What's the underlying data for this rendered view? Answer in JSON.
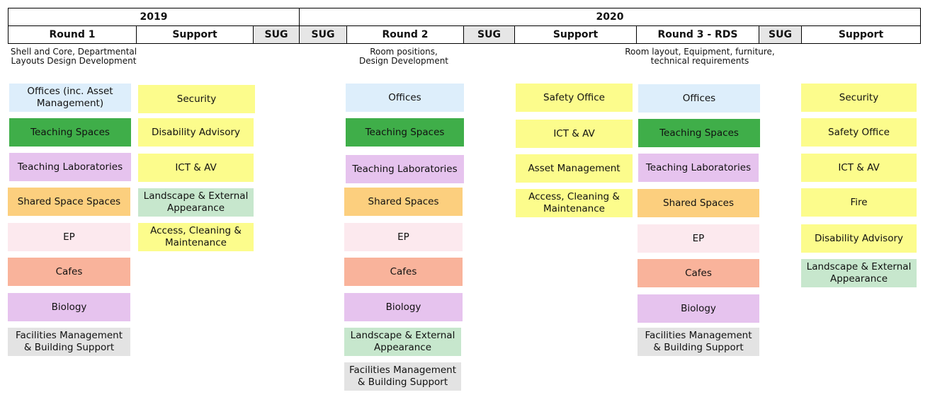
{
  "headers": {
    "year_2019": "2019",
    "year_2020": "2020",
    "round1": "Round 1",
    "support": "Support",
    "sug": "SUG",
    "round2": "Round 2",
    "round3": "Round 3 - RDS"
  },
  "notes": {
    "round1": "Shell and Core, Departmental\nLayouts Design Development",
    "round2": "Room positions,\nDesign Development",
    "round3": "Room layout, Equipment, furniture,\ntechnical requirements"
  },
  "colors": {
    "blue": "#ddeefb",
    "green": "#3fae49",
    "lilac": "#e6c3ee",
    "orange": "#fccf7e",
    "pink": "#fce9ee",
    "salmon": "#f9b39b",
    "grey": "#e3e3e3",
    "yellow": "#fcfc8c",
    "mint": "#c7e7cd"
  },
  "round1": [
    "Offices (inc. Asset Management)",
    "Teaching Spaces",
    "Teaching Laboratories",
    "Shared Space Spaces",
    "EP",
    "Cafes",
    "Biology",
    "Facilities Management & Building Support"
  ],
  "support1": [
    "Security",
    "Disability Advisory",
    "ICT & AV",
    "Landscape & External Appearance",
    "Access, Cleaning & Maintenance"
  ],
  "round2": [
    "Offices",
    "Teaching Spaces",
    "Teaching Laboratories",
    "Shared Spaces",
    "EP",
    "Cafes",
    "Biology",
    "Landscape & External Appearance",
    "Facilities Management & Building Support"
  ],
  "support2": [
    "Safety Office",
    "ICT & AV",
    "Asset Management",
    "Access, Cleaning & Maintenance"
  ],
  "round3": [
    "Offices",
    "Teaching Spaces",
    "Teaching Laboratories",
    "Shared Spaces",
    "EP",
    "Cafes",
    "Biology",
    "Facilities Management & Building Support"
  ],
  "support3": [
    "Security",
    "Safety Office",
    "ICT & AV",
    "Fire",
    "Disability Advisory",
    "Landscape & External Appearance"
  ]
}
